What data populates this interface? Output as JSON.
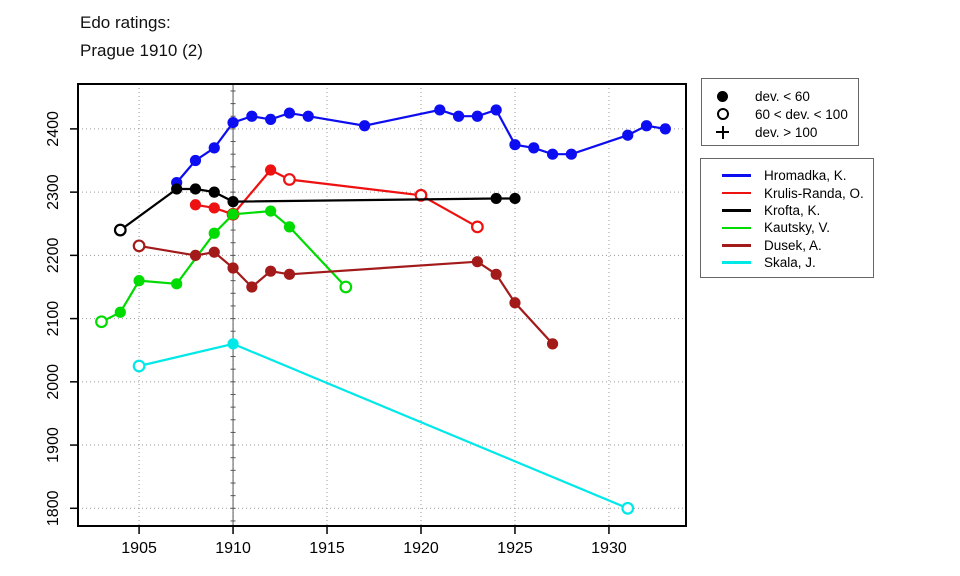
{
  "titles": {
    "line1": "Edo ratings:",
    "line2": "Prague 1910 (2)"
  },
  "deviation_legend": {
    "items": [
      {
        "marker": "filled",
        "label": "dev. < 60"
      },
      {
        "marker": "open",
        "label": "60 < dev. < 100"
      },
      {
        "marker": "plus",
        "label": "dev. > 100"
      }
    ]
  },
  "chart_data": {
    "type": "line",
    "title": "Edo ratings: Prague 1910 (2)",
    "xlabel": "",
    "ylabel": "",
    "xlim": [
      1901.75,
      1934.1
    ],
    "ylim": [
      1772,
      2471
    ],
    "x_ticks": [
      1905,
      1910,
      1915,
      1920,
      1925,
      1930
    ],
    "y_ticks": [
      1800,
      1900,
      2000,
      2100,
      2200,
      2300,
      2400
    ],
    "grid": true,
    "highlight_x": 1910,
    "legend_position": "right",
    "marker_key": {
      "f": "dev. < 60 (filled circle)",
      "o": "60 < dev. < 100 (open circle)",
      "p": "dev. > 100 (plus)"
    },
    "series": [
      {
        "name": "Hromadka, K.",
        "color": "#0d0df2",
        "points": [
          [
            1907,
            2315,
            "f"
          ],
          [
            1908,
            2350,
            "f"
          ],
          [
            1909,
            2370,
            "f"
          ],
          [
            1910,
            2410,
            "f"
          ],
          [
            1911,
            2420,
            "f"
          ],
          [
            1912,
            2415,
            "f"
          ],
          [
            1913,
            2425,
            "f"
          ],
          [
            1914,
            2420,
            "f"
          ],
          [
            1917,
            2405,
            "f"
          ],
          [
            1921,
            2430,
            "f"
          ],
          [
            1922,
            2420,
            "f"
          ],
          [
            1923,
            2420,
            "f"
          ],
          [
            1924,
            2430,
            "f"
          ],
          [
            1925,
            2375,
            "f"
          ],
          [
            1926,
            2370,
            "f"
          ],
          [
            1927,
            2360,
            "f"
          ],
          [
            1928,
            2360,
            "f"
          ],
          [
            1931,
            2390,
            "f"
          ],
          [
            1932,
            2405,
            "f"
          ],
          [
            1933,
            2400,
            "f"
          ]
        ]
      },
      {
        "name": "Krulis-Randa, O.",
        "color": "#ee1111",
        "points": [
          [
            1908,
            2280,
            "f"
          ],
          [
            1909,
            2275,
            "f"
          ],
          [
            1910,
            2265,
            "o"
          ],
          [
            1912,
            2335,
            "f"
          ],
          [
            1913,
            2320,
            "o"
          ],
          [
            1920,
            2295,
            "o"
          ],
          [
            1923,
            2245,
            "o"
          ]
        ]
      },
      {
        "name": "Krofta, K.",
        "color": "#000000",
        "points": [
          [
            1904,
            2240,
            "o"
          ],
          [
            1907,
            2305,
            "f"
          ],
          [
            1908,
            2305,
            "f"
          ],
          [
            1909,
            2300,
            "f"
          ],
          [
            1910,
            2285,
            "f"
          ],
          [
            1924,
            2290,
            "f"
          ],
          [
            1925,
            2290,
            "f"
          ]
        ]
      },
      {
        "name": "Kautsky, V.",
        "color": "#00db00",
        "points": [
          [
            1903,
            2095,
            "o"
          ],
          [
            1904,
            2110,
            "f"
          ],
          [
            1905,
            2160,
            "f"
          ],
          [
            1907,
            2155,
            "f"
          ],
          [
            1909,
            2235,
            "f"
          ],
          [
            1910,
            2265,
            "f"
          ],
          [
            1912,
            2270,
            "f"
          ],
          [
            1913,
            2245,
            "f"
          ],
          [
            1916,
            2150,
            "o"
          ]
        ]
      },
      {
        "name": "Dusek, A.",
        "color": "#a31a1a",
        "points": [
          [
            1905,
            2215,
            "o"
          ],
          [
            1908,
            2200,
            "f"
          ],
          [
            1909,
            2205,
            "f"
          ],
          [
            1910,
            2180,
            "f"
          ],
          [
            1911,
            2150,
            "f"
          ],
          [
            1912,
            2175,
            "f"
          ],
          [
            1913,
            2170,
            "f"
          ],
          [
            1923,
            2190,
            "f"
          ],
          [
            1924,
            2170,
            "f"
          ],
          [
            1925,
            2125,
            "f"
          ],
          [
            1927,
            2060,
            "f"
          ]
        ]
      },
      {
        "name": "Skala, J.",
        "color": "#00e8e8",
        "points": [
          [
            1905,
            2025,
            "o"
          ],
          [
            1910,
            2060,
            "f"
          ],
          [
            1931,
            1800,
            "o"
          ]
        ]
      }
    ]
  }
}
